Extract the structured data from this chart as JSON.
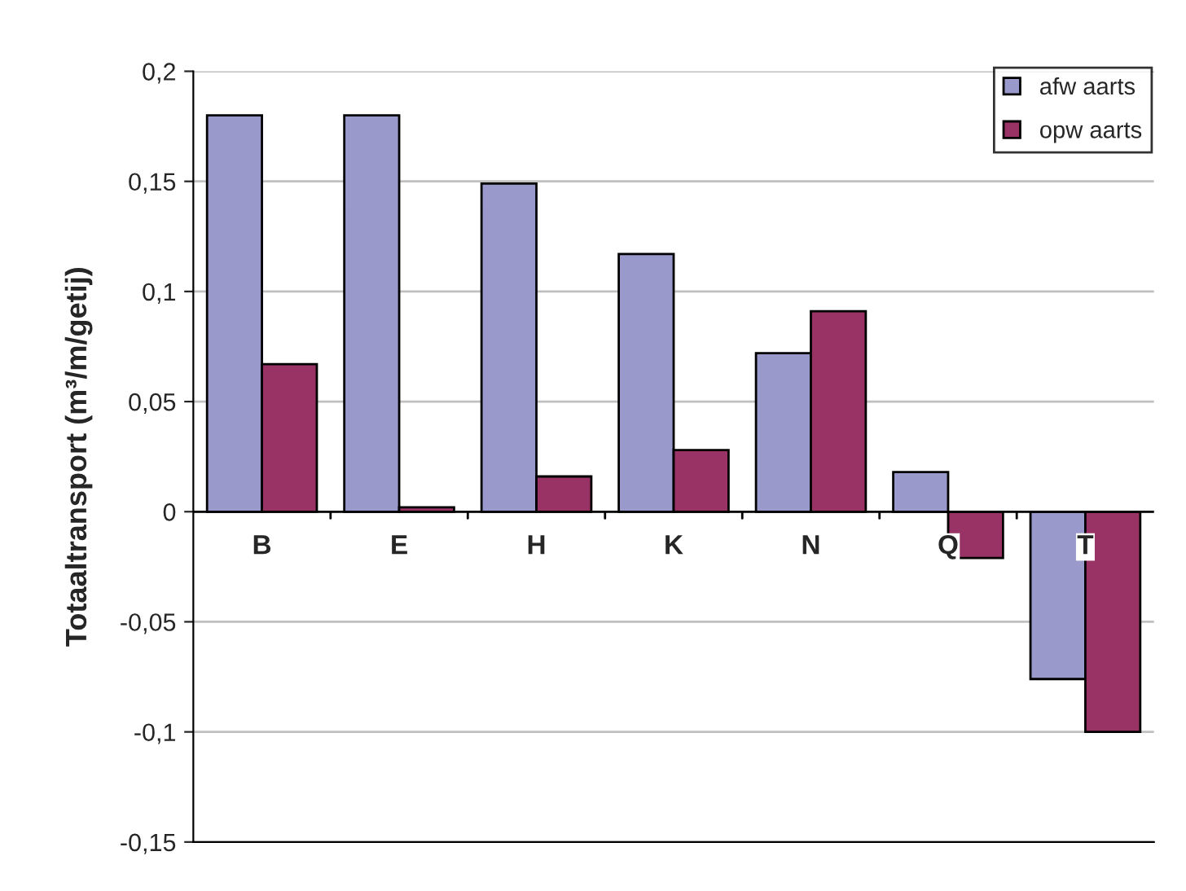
{
  "chart_data": {
    "type": "bar",
    "ylabel": "Totaaltransport (m³/m/getij)",
    "categories": [
      "B",
      "E",
      "H",
      "K",
      "N",
      "Q",
      "T"
    ],
    "series": [
      {
        "name": "afw aarts",
        "color": "#9999cc",
        "values": [
          0.18,
          0.18,
          0.149,
          0.117,
          0.072,
          0.018,
          -0.076
        ]
      },
      {
        "name": "opw aarts",
        "color": "#993366",
        "values": [
          0.067,
          0.002,
          0.016,
          0.028,
          0.091,
          -0.021,
          -0.1
        ]
      }
    ],
    "ylim": [
      -0.15,
      0.2
    ],
    "yticks": [
      {
        "value": -0.15,
        "label": "-0,15"
      },
      {
        "value": -0.1,
        "label": "-0,1"
      },
      {
        "value": -0.05,
        "label": "-0,05"
      },
      {
        "value": 0,
        "label": "0"
      },
      {
        "value": 0.05,
        "label": "0,05"
      },
      {
        "value": 0.1,
        "label": "0,1"
      },
      {
        "value": 0.15,
        "label": "0,15"
      },
      {
        "value": 0.2,
        "label": "0,2"
      }
    ],
    "grid": "y",
    "legend": "top right"
  }
}
